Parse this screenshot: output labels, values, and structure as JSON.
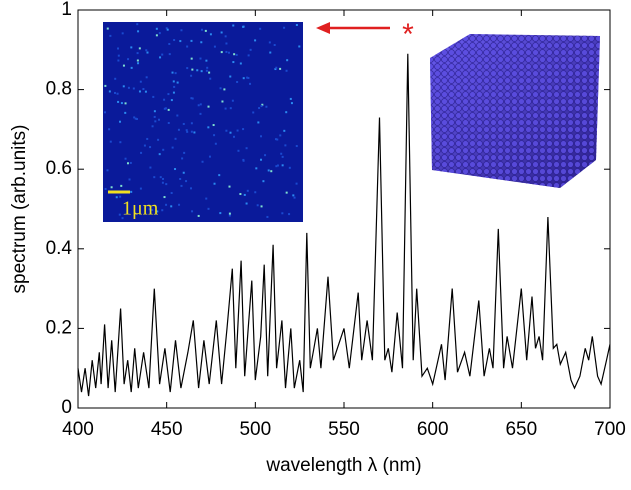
{
  "chart_data": {
    "type": "line",
    "xlabel": "wavelength λ (nm)",
    "ylabel": "spectrum (arb.units)",
    "annotations": {
      "scale_bar": "1μm",
      "peak_marker": "*"
    },
    "xlim": [
      400,
      700
    ],
    "xticks": [
      400,
      450,
      500,
      550,
      600,
      650,
      700
    ],
    "ylim": [
      0,
      1
    ],
    "yticks": [
      0,
      0.2,
      0.4,
      0.6,
      0.8,
      1
    ],
    "series": [
      {
        "color": "#000000",
        "x": [
          400,
          402,
          404,
          406,
          408,
          410,
          412,
          413,
          415,
          417,
          419,
          421,
          424,
          426,
          428,
          430,
          432,
          434,
          437,
          440,
          443,
          446,
          449,
          452,
          455,
          458,
          462,
          465,
          468,
          471,
          474,
          478,
          481,
          484,
          487,
          489,
          492,
          494,
          496,
          498,
          500,
          503,
          505,
          507,
          510,
          512,
          515,
          517,
          520,
          522,
          525,
          527,
          529,
          531,
          533,
          535,
          537,
          541,
          544,
          547,
          550,
          553,
          558,
          560,
          563,
          566,
          570,
          573,
          575,
          577,
          580,
          583,
          586,
          589,
          591,
          594,
          597,
          600,
          603,
          605,
          607,
          611,
          614,
          618,
          621,
          626,
          629,
          632,
          634,
          637,
          640,
          642,
          645,
          650,
          653,
          656,
          658,
          660,
          662,
          665,
          668,
          670,
          672,
          675,
          678,
          680,
          683,
          686,
          688,
          690,
          693,
          695,
          698,
          700
        ],
        "values": [
          0.1,
          0.04,
          0.1,
          0.03,
          0.12,
          0.05,
          0.14,
          0.06,
          0.21,
          0.05,
          0.17,
          0.04,
          0.25,
          0.06,
          0.12,
          0.04,
          0.15,
          0.05,
          0.14,
          0.05,
          0.3,
          0.06,
          0.15,
          0.04,
          0.17,
          0.05,
          0.14,
          0.22,
          0.05,
          0.17,
          0.06,
          0.22,
          0.06,
          0.2,
          0.35,
          0.1,
          0.37,
          0.08,
          0.2,
          0.32,
          0.07,
          0.18,
          0.36,
          0.08,
          0.41,
          0.1,
          0.22,
          0.05,
          0.2,
          0.05,
          0.12,
          0.04,
          0.44,
          0.1,
          0.15,
          0.2,
          0.1,
          0.33,
          0.12,
          0.16,
          0.2,
          0.1,
          0.29,
          0.12,
          0.22,
          0.12,
          0.73,
          0.12,
          0.15,
          0.09,
          0.24,
          0.1,
          0.89,
          0.12,
          0.3,
          0.08,
          0.1,
          0.06,
          0.12,
          0.16,
          0.07,
          0.3,
          0.09,
          0.14,
          0.08,
          0.27,
          0.08,
          0.15,
          0.1,
          0.45,
          0.1,
          0.18,
          0.1,
          0.3,
          0.12,
          0.28,
          0.15,
          0.18,
          0.12,
          0.48,
          0.15,
          0.16,
          0.11,
          0.14,
          0.07,
          0.05,
          0.08,
          0.15,
          0.12,
          0.18,
          0.08,
          0.06,
          0.12,
          0.16
        ]
      }
    ]
  }
}
